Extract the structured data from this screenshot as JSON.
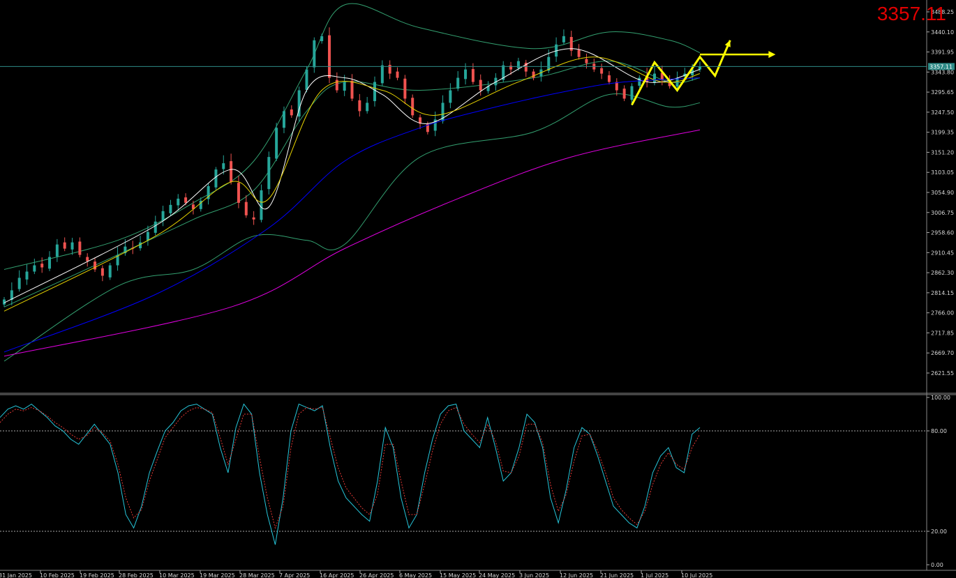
{
  "header": {
    "current_price_label": "3357.11"
  },
  "colors": {
    "background": "#000000",
    "bull_candle": "#26a69a",
    "bear_candle": "#ef5350",
    "ma_fast": "#ffffff",
    "ma_mid": "#e6d200",
    "ma_slow": "#0000ff",
    "ma_long": "#e000e0",
    "bollinger": "#33a070",
    "stoch_main": "#26c6da",
    "stoch_signal": "#e53935",
    "projection": "#ffff00",
    "price_line": "#2e8b87",
    "price_text": "#e00000"
  },
  "chart_data": [
    {
      "type": "candlestick",
      "title": "",
      "current_price": 3357.11,
      "current_price_tag": "3357.11",
      "ylim": [
        2600,
        3500
      ],
      "y_ticks": [
        "3488.25",
        "3440.10",
        "3391.95",
        "3343.80",
        "3295.65",
        "3247.50",
        "3199.35",
        "3151.20",
        "3103.05",
        "3054.90",
        "3006.75",
        "2958.60",
        "2910.45",
        "2862.30",
        "2814.15",
        "2766.00",
        "2717.85",
        "2669.70",
        "2621.55"
      ],
      "x_ticks": [
        "31 Jan 2025",
        "10 Feb 2025",
        "19 Feb 2025",
        "28 Feb 2025",
        "10 Mar 2025",
        "19 Mar 2025",
        "28 Mar 2025",
        "7 Apr 2025",
        "16 Apr 2025",
        "26 Apr 2025",
        "6 May 2025",
        "15 May 2025",
        "24 May 2025",
        "3 Jun 2025",
        "12 Jun 2025",
        "21 Jun 2025",
        "1 Jul 2025",
        "10 Jul 2025"
      ],
      "close_path": [
        2798,
        2820,
        2850,
        2865,
        2880,
        2875,
        2900,
        2930,
        2920,
        2935,
        2905,
        2890,
        2870,
        2855,
        2880,
        2905,
        2925,
        2920,
        2935,
        2960,
        2985,
        3010,
        3025,
        3040,
        3030,
        3015,
        3035,
        3070,
        3110,
        3125,
        3080,
        3030,
        3000,
        2990,
        3060,
        3140,
        3210,
        3250,
        3240,
        3300,
        3350,
        3420,
        3430,
        3330,
        3300,
        3320,
        3280,
        3250,
        3270,
        3320,
        3360,
        3340,
        3330,
        3280,
        3240,
        3220,
        3200,
        3230,
        3270,
        3300,
        3330,
        3350,
        3320,
        3300,
        3310,
        3330,
        3360,
        3350,
        3370,
        3345,
        3330,
        3350,
        3380,
        3410,
        3430,
        3395,
        3380,
        3365,
        3350,
        3340,
        3320,
        3300,
        3280,
        3310,
        3330,
        3320,
        3340,
        3325,
        3310,
        3330,
        3340,
        3350,
        3357
      ],
      "indicators": [
        {
          "name": "MA white",
          "values": [
            [
              0,
              2790
            ],
            [
              20,
              2975
            ],
            [
              30,
              3110
            ],
            [
              35,
              3020
            ],
            [
              40,
              3300
            ],
            [
              45,
              3330
            ],
            [
              50,
              3290
            ],
            [
              56,
              3220
            ],
            [
              65,
              3320
            ],
            [
              75,
              3400
            ],
            [
              85,
              3320
            ],
            [
              92,
              3350
            ]
          ]
        },
        {
          "name": "MA yellow",
          "values": [
            [
              0,
              2770
            ],
            [
              20,
              2950
            ],
            [
              30,
              3080
            ],
            [
              35,
              3040
            ],
            [
              42,
              3300
            ],
            [
              50,
              3300
            ],
            [
              57,
              3240
            ],
            [
              68,
              3320
            ],
            [
              78,
              3380
            ],
            [
              87,
              3320
            ],
            [
              92,
              3340
            ]
          ]
        },
        {
          "name": "MA blue",
          "values": [
            [
              0,
              2672
            ],
            [
              20,
              2810
            ],
            [
              35,
              2970
            ],
            [
              45,
              3130
            ],
            [
              55,
              3210
            ],
            [
              65,
              3260
            ],
            [
              75,
              3300
            ],
            [
              82,
              3320
            ],
            [
              92,
              3330
            ]
          ]
        },
        {
          "name": "MA magenta",
          "values": [
            [
              0,
              2662
            ],
            [
              30,
              2780
            ],
            [
              45,
              2920
            ],
            [
              60,
              3040
            ],
            [
              75,
              3140
            ],
            [
              92,
              3205
            ]
          ]
        },
        {
          "name": "Bollinger upper",
          "values": [
            [
              0,
              2870
            ],
            [
              15,
              2940
            ],
            [
              25,
              3030
            ],
            [
              33,
              3130
            ],
            [
              40,
              3350
            ],
            [
              45,
              3505
            ],
            [
              55,
              3450
            ],
            [
              70,
              3400
            ],
            [
              80,
              3440
            ],
            [
              88,
              3420
            ],
            [
              92,
              3390
            ]
          ]
        },
        {
          "name": "Bollinger middle",
          "values": [
            [
              0,
              2780
            ],
            [
              15,
              2905
            ],
            [
              25,
              2990
            ],
            [
              33,
              3060
            ],
            [
              40,
              3250
            ],
            [
              45,
              3320
            ],
            [
              55,
              3300
            ],
            [
              70,
              3330
            ],
            [
              80,
              3370
            ],
            [
              88,
              3320
            ],
            [
              92,
              3330
            ]
          ]
        },
        {
          "name": "Bollinger lower",
          "values": [
            [
              0,
              2650
            ],
            [
              15,
              2830
            ],
            [
              25,
              2870
            ],
            [
              33,
              2950
            ],
            [
              40,
              2940
            ],
            [
              45,
              2930
            ],
            [
              55,
              3140
            ],
            [
              70,
              3200
            ],
            [
              80,
              3290
            ],
            [
              88,
              3260
            ],
            [
              92,
              3270
            ]
          ]
        }
      ],
      "projection": {
        "zigzag": [
          [
            83,
            3265
          ],
          [
            86,
            3367
          ],
          [
            89,
            3300
          ],
          [
            92,
            3380
          ],
          [
            94,
            3335
          ],
          [
            96,
            3420
          ]
        ],
        "arrow_horizontal": {
          "y": 3386,
          "x_from": 92,
          "x_to": 102
        }
      }
    },
    {
      "type": "line",
      "title": "",
      "ylim": [
        0,
        100
      ],
      "y_ticks": [
        "100.00",
        "80.00",
        "20.00",
        "0.00"
      ],
      "levels": [
        80,
        20
      ],
      "series": [
        {
          "values": [
            88,
            93,
            95,
            93,
            96,
            92,
            88,
            83,
            80,
            75,
            72,
            78,
            84,
            78,
            72,
            55,
            30,
            22,
            35,
            55,
            68,
            80,
            85,
            92,
            95,
            96,
            93,
            90,
            70,
            55,
            82,
            96,
            90,
            55,
            30,
            12,
            40,
            80,
            96,
            94,
            92,
            95,
            70,
            50,
            40,
            35,
            30,
            26,
            50,
            82,
            70,
            40,
            22,
            30,
            55,
            75,
            90,
            95,
            96,
            80,
            75,
            70,
            88,
            70,
            50,
            55,
            70,
            90,
            85,
            70,
            40,
            25,
            45,
            70,
            82,
            78,
            65,
            50,
            35,
            30,
            25,
            22,
            35,
            55,
            65,
            70,
            58,
            55,
            78,
            82
          ]
        },
        {
          "values": [
            85,
            90,
            93,
            92,
            94,
            92,
            89,
            85,
            82,
            78,
            75,
            77,
            82,
            79,
            74,
            60,
            40,
            28,
            33,
            50,
            63,
            76,
            82,
            88,
            92,
            94,
            93,
            91,
            76,
            60,
            75,
            90,
            90,
            64,
            40,
            22,
            35,
            70,
            90,
            94,
            93,
            94,
            76,
            58,
            46,
            40,
            34,
            30,
            42,
            72,
            72,
            50,
            30,
            30,
            48,
            68,
            84,
            92,
            94,
            84,
            78,
            73,
            84,
            74,
            56,
            55,
            65,
            84,
            84,
            73,
            48,
            32,
            42,
            62,
            77,
            78,
            68,
            55,
            40,
            33,
            28,
            24,
            32,
            48,
            60,
            67,
            60,
            57,
            70,
            78
          ]
        }
      ]
    }
  ]
}
